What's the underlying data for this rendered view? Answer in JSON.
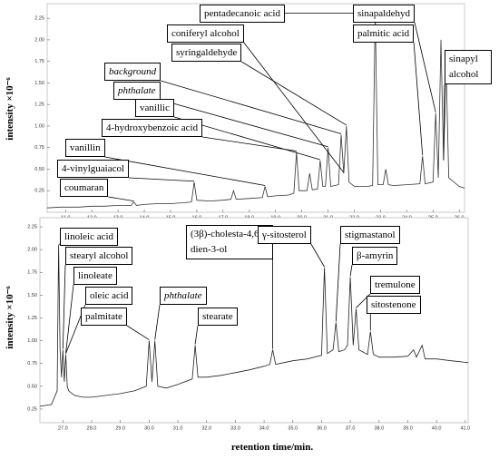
{
  "chart_data": [
    {
      "type": "line",
      "y_label": "intensity ×10⁻⁶",
      "color": "#333333",
      "xlim": [
        10.3,
        26.2
      ],
      "ylim": [
        0,
        2.42
      ],
      "xticks": [
        {
          "value": 11,
          "label": "11.0"
        },
        {
          "value": 12,
          "label": "12.0"
        },
        {
          "value": 13,
          "label": "13.0"
        },
        {
          "value": 14,
          "label": "14.0"
        },
        {
          "value": 15,
          "label": "15.0"
        },
        {
          "value": 16,
          "label": "16.0"
        },
        {
          "value": 17,
          "label": "17.0"
        },
        {
          "value": 18,
          "label": "18.0"
        },
        {
          "value": 19,
          "label": "19.0"
        },
        {
          "value": 20,
          "label": "20.0"
        },
        {
          "value": 21,
          "label": "21.0"
        },
        {
          "value": 22,
          "label": "22.0"
        },
        {
          "value": 23,
          "label": "23.0"
        },
        {
          "value": 24,
          "label": "24.0"
        },
        {
          "value": 25,
          "label": "25.0"
        },
        {
          "value": 26,
          "label": "26.0"
        }
      ],
      "yticks": [
        0.25,
        {
          "value": 0.5,
          "label": "0.50"
        },
        0.75,
        {
          "value": 1,
          "label": "1.00"
        },
        1.25,
        {
          "value": 1.5,
          "label": "1.50"
        },
        1.75,
        {
          "value": 2,
          "label": "2.00"
        },
        2.25
      ],
      "x": [
        10.3,
        10.8,
        11.0,
        11.5,
        12.0,
        12.5,
        13.0,
        13.5,
        13.6,
        13.7,
        14.0,
        14.5,
        15.0,
        15.5,
        15.8,
        15.9,
        16.0,
        16.5,
        17.0,
        17.3,
        17.4,
        17.5,
        18.0,
        18.5,
        18.6,
        18.7,
        19.0,
        19.5,
        19.7,
        19.8,
        19.9,
        20.2,
        20.3,
        20.4,
        20.6,
        20.7,
        20.8,
        20.9,
        21.0,
        21.1,
        21.4,
        21.5,
        21.6,
        21.7,
        21.8,
        22.0,
        22.5,
        22.7,
        22.8,
        22.9,
        23.1,
        23.2,
        23.3,
        23.5,
        24.0,
        24.5,
        24.6,
        24.7,
        25.0,
        25.1,
        25.2,
        25.3,
        25.4,
        25.5,
        25.6,
        26.0,
        26.2
      ],
      "values": [
        0.05,
        0.06,
        0.06,
        0.06,
        0.07,
        0.07,
        0.08,
        0.08,
        0.12,
        0.08,
        0.09,
        0.1,
        0.1,
        0.11,
        0.12,
        0.35,
        0.14,
        0.13,
        0.14,
        0.15,
        0.25,
        0.15,
        0.16,
        0.17,
        0.3,
        0.18,
        0.19,
        0.2,
        0.22,
        0.7,
        0.25,
        0.25,
        0.45,
        0.26,
        0.27,
        0.6,
        0.3,
        0.3,
        0.75,
        0.3,
        0.32,
        0.9,
        0.45,
        1.0,
        0.35,
        0.3,
        0.3,
        0.31,
        2.3,
        0.32,
        0.32,
        0.5,
        0.32,
        0.31,
        0.32,
        0.33,
        0.65,
        0.33,
        0.35,
        1.15,
        0.4,
        2.0,
        0.6,
        1.7,
        0.4,
        0.3,
        0.28
      ],
      "annotations": [
        {
          "text": "coumaran",
          "x": 13.6
        },
        {
          "text": "4-vinylguaiacol",
          "x": 15.9
        },
        {
          "text": "vanillin",
          "x": 18.6
        },
        {
          "text": "4-hydroxybenzoic acid",
          "x": 19.8
        },
        {
          "text": "vanillic",
          "x": 20.7
        },
        {
          "text": "phthalate",
          "x": 21.0,
          "italic": true
        },
        {
          "text": "background",
          "x": 21.5,
          "italic": true
        },
        {
          "text": "syringaldehyde",
          "x": 21.7
        },
        {
          "text": "coniferyl alcohol",
          "x": 21.6
        },
        {
          "text": "pentadecanoic acid",
          "x": 22.8
        },
        {
          "text": "sinapaldehyd",
          "x": 25.1
        },
        {
          "text": "palmitic acid",
          "x": 24.6
        },
        {
          "text": "sinapyl alcohol",
          "x": 25.4
        }
      ]
    },
    {
      "type": "line",
      "y_label": "intensity ×10⁻⁶",
      "x_label": "retention time/min.",
      "color": "#222222",
      "xlim": [
        26.2,
        41.1
      ],
      "ylim": [
        0.1,
        2.35
      ],
      "xticks": [
        {
          "value": 27,
          "label": "27.0"
        },
        {
          "value": 28,
          "label": "28.0"
        },
        {
          "value": 29,
          "label": "29.0"
        },
        {
          "value": 30,
          "label": "30.0"
        },
        {
          "value": 31,
          "label": "31.0"
        },
        {
          "value": 32,
          "label": "32.0"
        },
        {
          "value": 33,
          "label": "33.0"
        },
        {
          "value": 34,
          "label": "34.0"
        },
        {
          "value": 35,
          "label": "35.0"
        },
        {
          "value": 36,
          "label": "36.0"
        },
        {
          "value": 37,
          "label": "37.0"
        },
        {
          "value": 38,
          "label": "38.0"
        },
        {
          "value": 39,
          "label": "39.0"
        },
        {
          "value": 40,
          "label": "40.0"
        },
        {
          "value": 41,
          "label": "41.0"
        }
      ],
      "yticks": [
        0.25,
        {
          "value": 0.5,
          "label": "0.50"
        },
        0.75,
        {
          "value": 1,
          "label": "1.00"
        },
        1.25,
        {
          "value": 1.5,
          "label": "1.50"
        },
        1.75,
        {
          "value": 2,
          "label": "2.00"
        },
        2.25
      ],
      "x": [
        26.2,
        26.6,
        26.8,
        26.85,
        26.9,
        26.95,
        27.0,
        27.05,
        27.1,
        27.15,
        27.2,
        27.4,
        27.7,
        28.0,
        28.5,
        29.0,
        29.5,
        29.9,
        30.0,
        30.1,
        30.2,
        30.3,
        30.6,
        31.0,
        31.5,
        31.6,
        31.7,
        32.0,
        32.5,
        33.0,
        33.5,
        34.0,
        34.2,
        34.3,
        34.4,
        34.7,
        35.0,
        35.5,
        36.0,
        36.1,
        36.2,
        36.4,
        36.5,
        36.6,
        36.8,
        36.9,
        37.0,
        37.1,
        37.2,
        37.3,
        37.6,
        37.7,
        37.8,
        38.0,
        38.5,
        39.0,
        39.2,
        39.3,
        39.5,
        39.6,
        40.0,
        40.5,
        41.1
      ],
      "values": [
        0.28,
        0.3,
        0.45,
        2.05,
        0.9,
        0.6,
        0.9,
        0.55,
        0.85,
        0.5,
        0.45,
        0.4,
        0.38,
        0.38,
        0.4,
        0.42,
        0.45,
        0.5,
        1.0,
        0.55,
        1.0,
        0.5,
        0.48,
        0.52,
        0.58,
        0.95,
        0.6,
        0.6,
        0.62,
        0.65,
        0.68,
        0.72,
        0.74,
        0.9,
        0.74,
        0.76,
        0.78,
        0.8,
        0.84,
        1.8,
        0.86,
        0.9,
        1.2,
        0.88,
        0.9,
        0.95,
        1.7,
        0.95,
        1.35,
        0.9,
        0.85,
        1.1,
        0.85,
        0.82,
        0.82,
        0.83,
        0.9,
        0.82,
        0.95,
        0.8,
        0.8,
        0.78,
        0.76
      ],
      "annotations": [
        {
          "text": "linoleic acid",
          "x": 26.85
        },
        {
          "text": "stearyl alcohol",
          "x": 27.0
        },
        {
          "text": "linoleate",
          "x": 27.1
        },
        {
          "text": "oleic acid",
          "x": 27.1
        },
        {
          "text": "palmitate",
          "x": 30.0
        },
        {
          "text": "phthalate",
          "x": 30.2,
          "italic": true
        },
        {
          "text": "stearate",
          "x": 31.6
        },
        {
          "text": "(3β)-cholesta-4,6-dien-3-ol",
          "x": 34.3
        },
        {
          "text": "γ-sitosterol",
          "x": 36.1
        },
        {
          "text": "stigmastanol",
          "x": 36.5
        },
        {
          "text": "β-amyrin",
          "x": 37.0
        },
        {
          "text": "tremulone",
          "x": 37.2
        },
        {
          "text": "sitostenone",
          "x": 37.7
        }
      ]
    }
  ]
}
